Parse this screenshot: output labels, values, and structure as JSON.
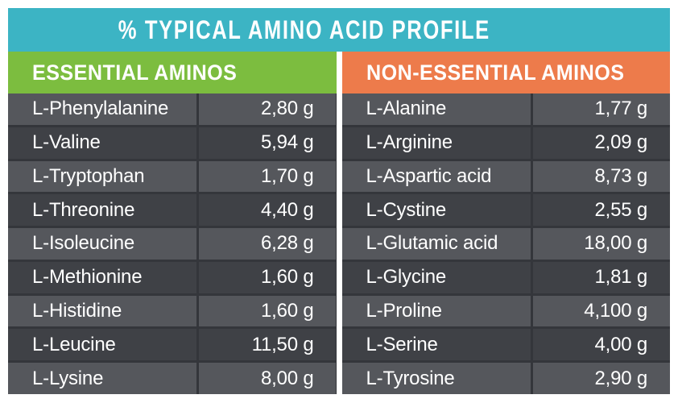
{
  "page": {
    "title": "% TYPICAL AMINO ACID PROFILE"
  },
  "tables": {
    "essential": {
      "header": "ESSENTIAL AMINOS",
      "rows": [
        {
          "name": "L-Phenylalanine",
          "value": "2,80 g"
        },
        {
          "name": "L-Valine",
          "value": "5,94 g"
        },
        {
          "name": "L-Tryptophan",
          "value": "1,70 g"
        },
        {
          "name": "L-Threonine",
          "value": "4,40 g"
        },
        {
          "name": "L-Isoleucine",
          "value": "6,28 g"
        },
        {
          "name": "L-Methionine",
          "value": "1,60 g"
        },
        {
          "name": "L-Histidine",
          "value": "1,60 g"
        },
        {
          "name": "L-Leucine",
          "value": "11,50 g"
        },
        {
          "name": "L-Lysine",
          "value": "8,00 g"
        }
      ]
    },
    "non_essential": {
      "header": "NON-ESSENTIAL AMINOS",
      "rows": [
        {
          "name": "L-Alanine",
          "value": "1,77 g"
        },
        {
          "name": "L-Arginine",
          "value": "2,09 g"
        },
        {
          "name": "L-Aspartic acid",
          "value": "8,73 g"
        },
        {
          "name": "L-Cystine",
          "value": "2,55 g"
        },
        {
          "name": "L-Glutamic acid",
          "value": "18,00 g"
        },
        {
          "name": "L-Glycine",
          "value": "1,81 g"
        },
        {
          "name": "L-Proline",
          "value": "4,100 g"
        },
        {
          "name": "L-Serine",
          "value": "4,00 g"
        },
        {
          "name": "L-Tyrosine",
          "value": "2,90 g"
        }
      ]
    }
  },
  "chart_data": {
    "type": "table",
    "title": "% TYPICAL AMINO ACID PROFILE",
    "unit": "g",
    "decimal_separator": ",",
    "series": [
      {
        "name": "ESSENTIAL AMINOS",
        "categories": [
          "L-Phenylalanine",
          "L-Valine",
          "L-Tryptophan",
          "L-Threonine",
          "L-Isoleucine",
          "L-Methionine",
          "L-Histidine",
          "L-Leucine",
          "L-Lysine"
        ],
        "values": [
          2.8,
          5.94,
          1.7,
          4.4,
          6.28,
          1.6,
          1.6,
          11.5,
          8.0
        ],
        "display_values": [
          "2,80 g",
          "5,94 g",
          "1,70 g",
          "4,40 g",
          "6,28 g",
          "1,60 g",
          "1,60 g",
          "11,50 g",
          "8,00 g"
        ]
      },
      {
        "name": "NON-ESSENTIAL AMINOS",
        "categories": [
          "L-Alanine",
          "L-Arginine",
          "L-Aspartic acid",
          "L-Cystine",
          "L-Glutamic acid",
          "L-Glycine",
          "L-Proline",
          "L-Serine",
          "L-Tyrosine"
        ],
        "values": [
          1.77,
          2.09,
          8.73,
          2.55,
          18.0,
          1.81,
          4.1,
          4.0,
          2.9
        ],
        "display_values": [
          "1,77 g",
          "2,09 g",
          "8,73 g",
          "2,55 g",
          "18,00 g",
          "1,81 g",
          "4,100 g",
          "4,00 g",
          "2,90 g"
        ]
      }
    ],
    "layout": {
      "columns_per_table": [
        "amino acid",
        "amount"
      ],
      "row_striping": "alternating light/dark starting light",
      "header_colors": {
        "essential": "green",
        "non_essential": "orange"
      },
      "title_bar_color": "teal"
    }
  },
  "colors": {
    "teal": "#3CB4C4",
    "green": "#7CBD3F",
    "orange": "#ED7B4B",
    "row_light": "#55575C",
    "row_dark": "#3F4146",
    "grid_line": "#34363B",
    "text": "#FFFFFF",
    "page_bg": "#FFFFFF"
  }
}
